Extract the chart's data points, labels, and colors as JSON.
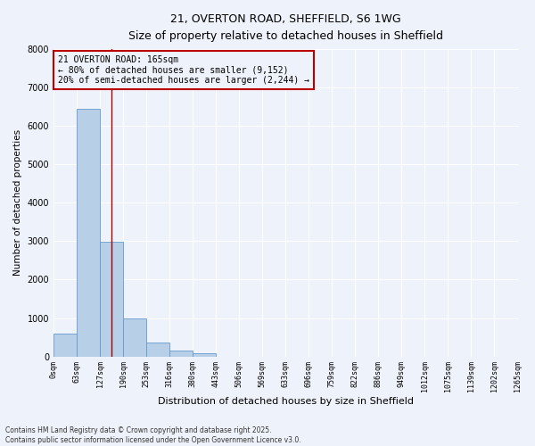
{
  "title_line1": "21, OVERTON ROAD, SHEFFIELD, S6 1WG",
  "title_line2": "Size of property relative to detached houses in Sheffield",
  "xlabel": "Distribution of detached houses by size in Sheffield",
  "ylabel": "Number of detached properties",
  "bin_labels": [
    "0sqm",
    "63sqm",
    "127sqm",
    "190sqm",
    "253sqm",
    "316sqm",
    "380sqm",
    "443sqm",
    "506sqm",
    "569sqm",
    "633sqm",
    "696sqm",
    "759sqm",
    "822sqm",
    "886sqm",
    "949sqm",
    "1012sqm",
    "1075sqm",
    "1139sqm",
    "1202sqm",
    "1265sqm"
  ],
  "bar_values": [
    600,
    6450,
    2980,
    1000,
    370,
    150,
    80,
    0,
    0,
    0,
    0,
    0,
    0,
    0,
    0,
    0,
    0,
    0,
    0,
    0
  ],
  "bar_color": "#b8cfe8",
  "bar_edge_color": "#6699cc",
  "vline_x": 2.5,
  "vline_color": "#aa0000",
  "annotation_text": "21 OVERTON ROAD: 165sqm\n← 80% of detached houses are smaller (9,152)\n20% of semi-detached houses are larger (2,244) →",
  "annotation_box_color": "#bb0000",
  "ylim": [
    0,
    8000
  ],
  "yticks": [
    0,
    1000,
    2000,
    3000,
    4000,
    5000,
    6000,
    7000,
    8000
  ],
  "background_color": "#eef2fa",
  "grid_color": "#ffffff",
  "footer_line1": "Contains HM Land Registry data © Crown copyright and database right 2025.",
  "footer_line2": "Contains public sector information licensed under the Open Government Licence v3.0."
}
